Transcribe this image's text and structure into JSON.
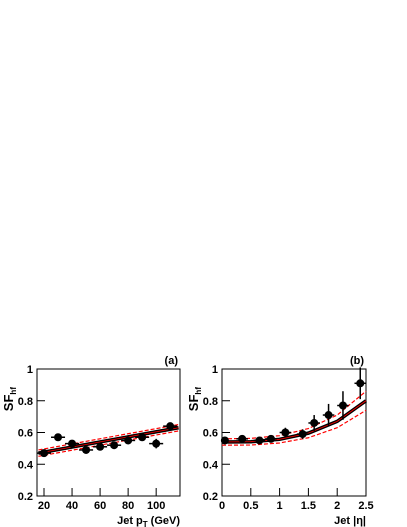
{
  "chart_data": [
    {
      "type": "scatter",
      "panel": "(a)",
      "y_label": "SF",
      "y_label_sub": "hf",
      "x_label": "Jet p",
      "x_label_sub": "T",
      "x_label_suffix": "(GeV)",
      "xlim": [
        15,
        117
      ],
      "ylim": [
        0.2,
        1
      ],
      "xticks": [
        20,
        40,
        60,
        80,
        100
      ],
      "yticks": [
        0.2,
        0.4,
        0.6,
        0.8,
        1
      ],
      "x": [
        20,
        30,
        40,
        50,
        60,
        70,
        80,
        90,
        100,
        110
      ],
      "xerr": [
        5,
        5,
        5,
        5,
        5,
        5,
        5,
        5,
        5,
        5
      ],
      "values": [
        0.47,
        0.57,
        0.53,
        0.49,
        0.51,
        0.52,
        0.55,
        0.57,
        0.53,
        0.64
      ],
      "errors": [
        0.02,
        0.02,
        0.02,
        0.02,
        0.02,
        0.02,
        0.02,
        0.02,
        0.03,
        0.02
      ],
      "color": "#000000",
      "fit_color": "#000000",
      "band_color": "#ff0000",
      "fit": {
        "x": [
          16,
          116
        ],
        "y": [
          0.47,
          0.63
        ],
        "y_up": [
          0.49,
          0.65
        ],
        "y_down": [
          0.45,
          0.61
        ]
      }
    },
    {
      "type": "scatter",
      "panel": "(b)",
      "y_label": "SF",
      "y_label_sub": "hf",
      "x_label": "Jet |η|",
      "x_label_sub": null,
      "x_label_suffix": null,
      "xlim": [
        0,
        2.5
      ],
      "ylim": [
        0.2,
        1
      ],
      "xticks": [
        0,
        0.5,
        1,
        1.5,
        2,
        2.5
      ],
      "yticks": [
        0.2,
        0.4,
        0.6,
        0.8,
        1
      ],
      "x": [
        0.05,
        0.35,
        0.65,
        0.85,
        1.1,
        1.4,
        1.6,
        1.85,
        2.1,
        2.4
      ],
      "xerr": [
        0.05,
        0.1,
        0.1,
        0.1,
        0.1,
        0.1,
        0.1,
        0.1,
        0.1,
        0.1
      ],
      "values": [
        0.55,
        0.56,
        0.55,
        0.56,
        0.6,
        0.59,
        0.66,
        0.71,
        0.77,
        0.91
      ],
      "errors": [
        0.02,
        0.02,
        0.02,
        0.02,
        0.03,
        0.03,
        0.05,
        0.07,
        0.09,
        0.1
      ],
      "color": "#000000",
      "fit_color": "#000000",
      "band_color": "#ff0000",
      "fit": {
        "x": [
          0,
          0.5,
          1,
          1.5,
          2,
          2.5
        ],
        "y": [
          0.54,
          0.542,
          0.557,
          0.596,
          0.67,
          0.8
        ],
        "y_up": [
          0.56,
          0.563,
          0.58,
          0.625,
          0.71,
          0.86
        ],
        "y_down": [
          0.52,
          0.521,
          0.534,
          0.567,
          0.63,
          0.74
        ]
      }
    }
  ]
}
